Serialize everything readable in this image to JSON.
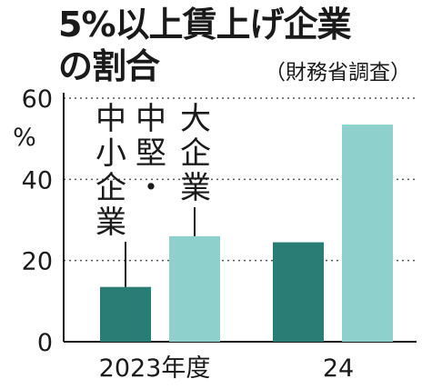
{
  "chart_data": {
    "type": "bar",
    "title_lines": [
      "5%以上賃上げ企業",
      "の割合"
    ],
    "source": "（財務省調査）",
    "unit": "%",
    "categories": [
      "2023年度",
      "24"
    ],
    "series": [
      {
        "name": "中小企業・中堅",
        "color": "#2a7d75",
        "values": [
          13.5,
          24.5
        ]
      },
      {
        "name": "大企業",
        "color": "#8ed0cc",
        "values": [
          26,
          53.5
        ]
      }
    ],
    "ylim": [
      0,
      60
    ],
    "yticks": [
      0,
      20,
      40,
      60
    ],
    "grid": "dotted"
  }
}
